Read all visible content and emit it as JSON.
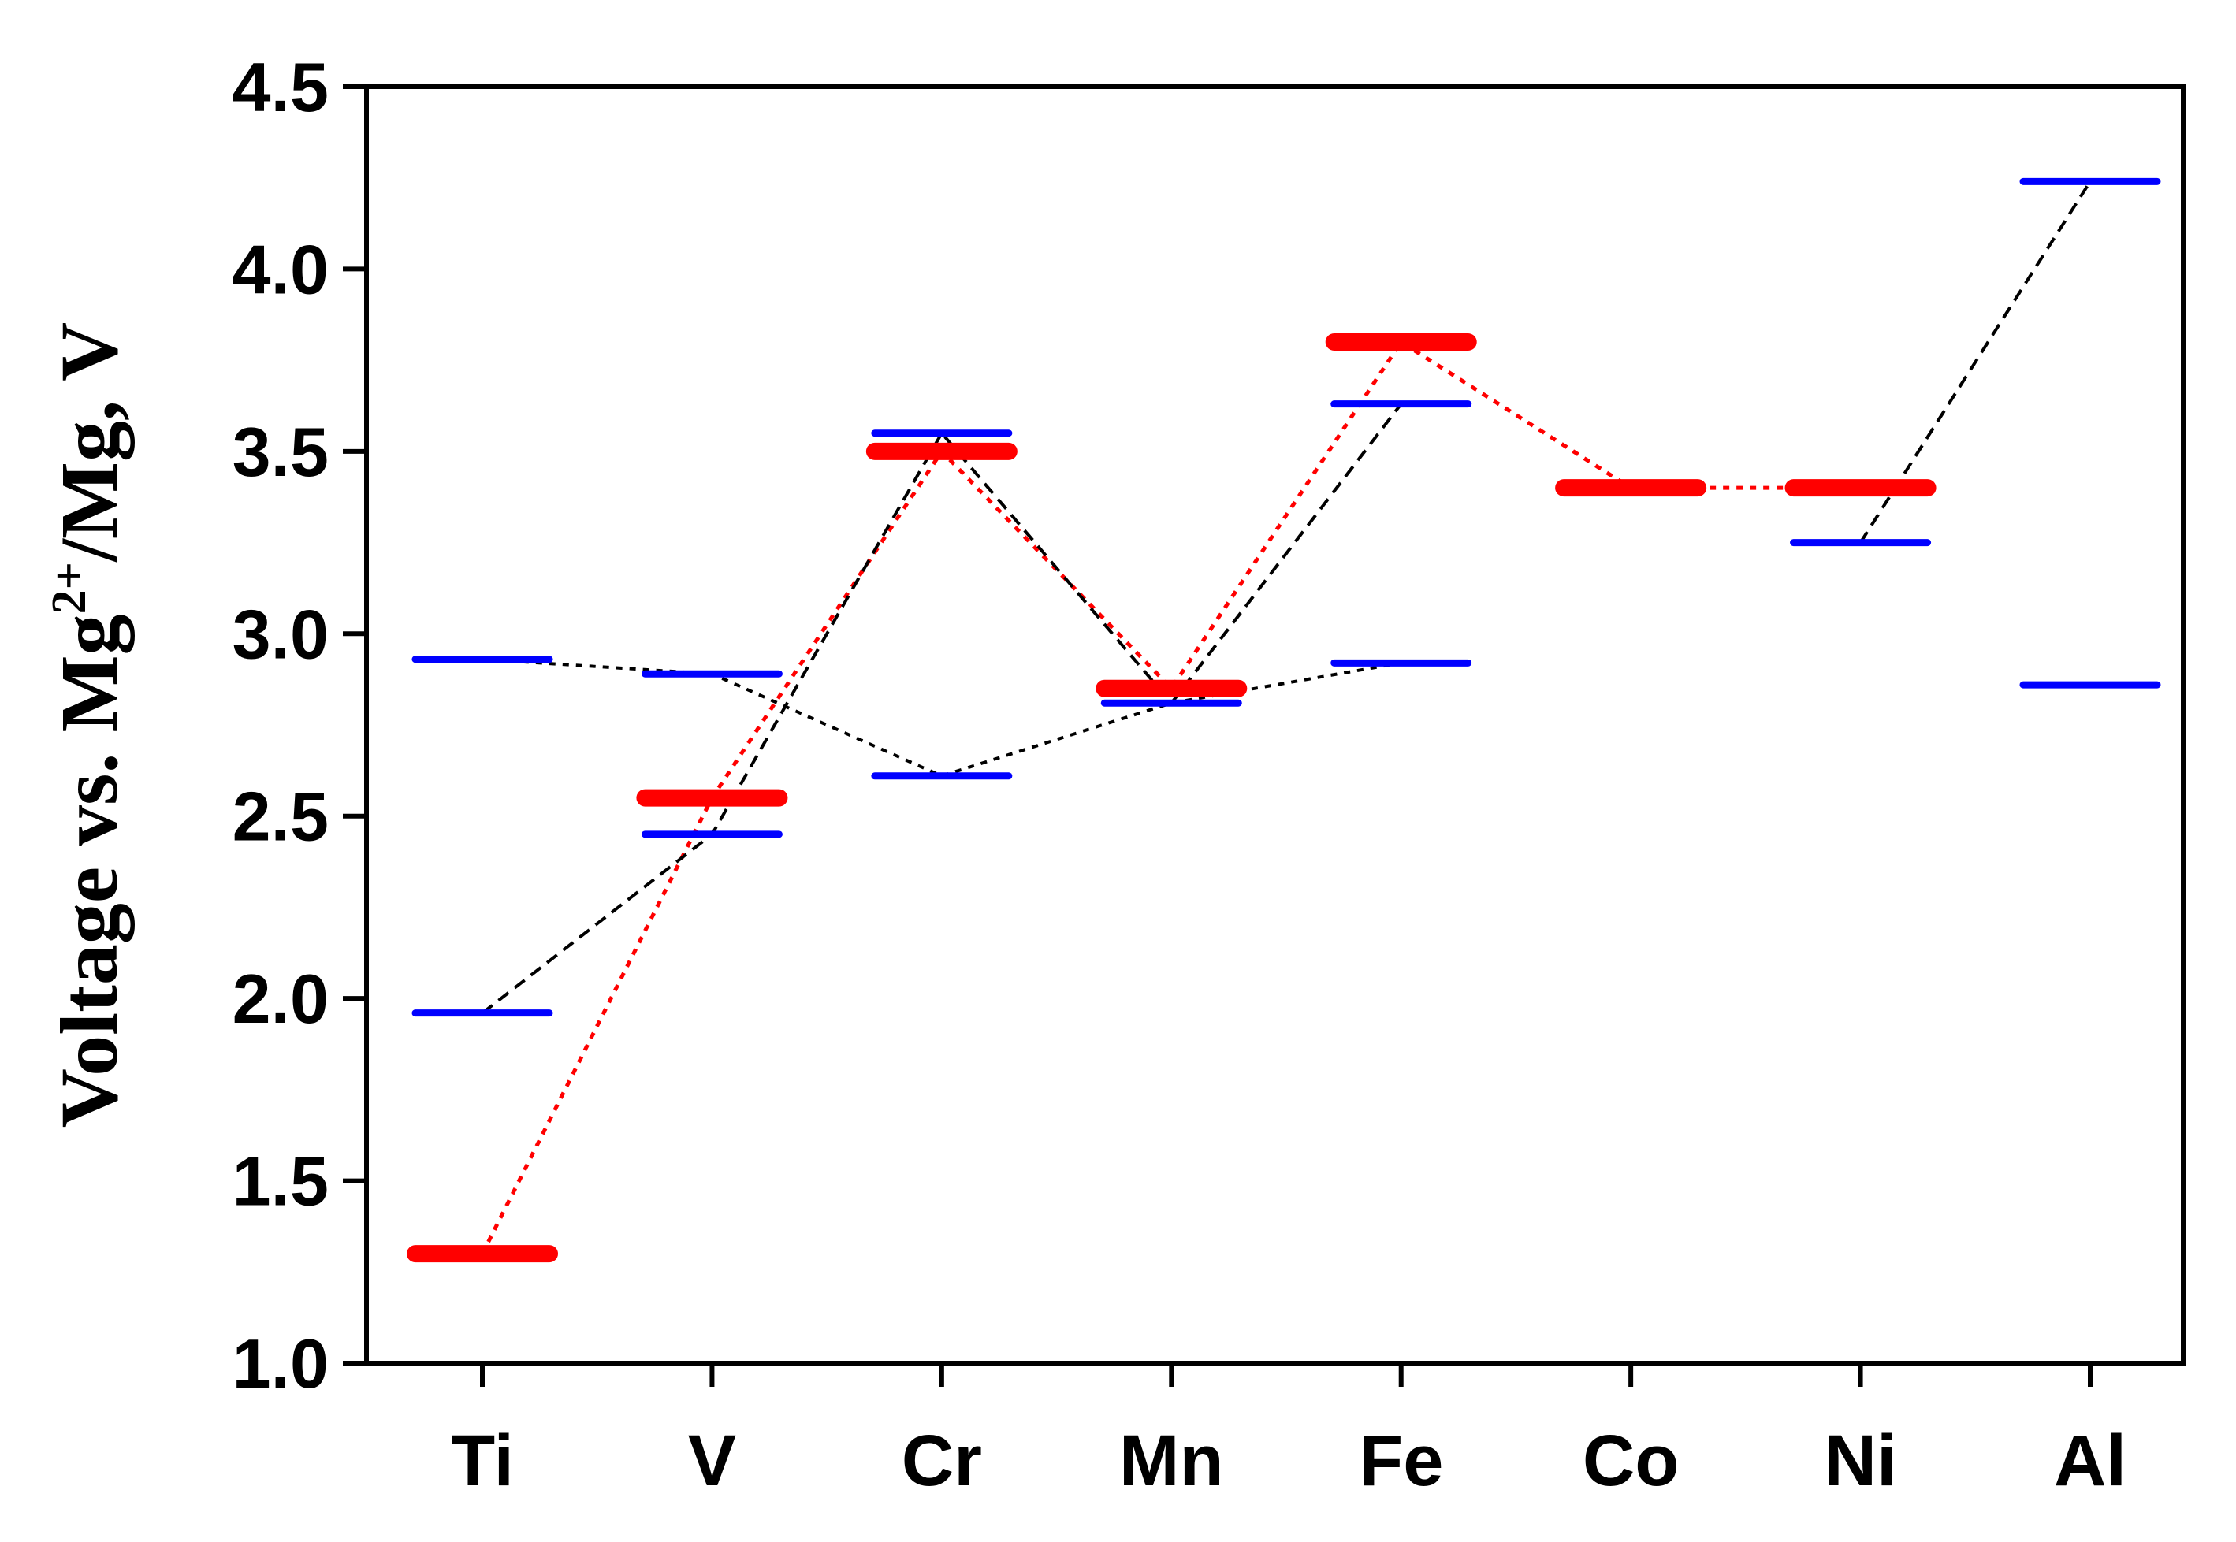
{
  "chart_data": {
    "type": "scatter",
    "categories": [
      "Ti",
      "V",
      "Cr",
      "Mn",
      "Fe",
      "Co",
      "Ni",
      "Al"
    ],
    "ylim": [
      1.0,
      4.5
    ],
    "yticks": [
      "1.0",
      "1.5",
      "2.0",
      "2.5",
      "3.0",
      "3.5",
      "4.0",
      "4.5"
    ],
    "ylabel": {
      "prefix": "Voltage vs. Mg",
      "superscript": "2+",
      "suffix": "/Mg, V"
    },
    "xlabel": "",
    "grid": false,
    "colors": {
      "series_red": "#ff0000",
      "series_blue": "#0000ff",
      "trend_line": "#000000",
      "axis": "#000000"
    },
    "series": [
      {
        "style": "thick-red-dash",
        "color": "#ff0000",
        "values": [
          1.3,
          2.55,
          3.5,
          2.85,
          3.8,
          3.4,
          3.4,
          null
        ]
      },
      {
        "style": "blue-dash-lower",
        "color": "#0000ff",
        "values": [
          1.96,
          2.45,
          2.61,
          2.81,
          3.63,
          null,
          3.25,
          4.24
        ]
      },
      {
        "style": "blue-dash-upper",
        "color": "#0000ff",
        "values": [
          2.93,
          2.89,
          3.55,
          null,
          2.92,
          null,
          null,
          2.86
        ]
      }
    ],
    "trend_lines": [
      {
        "color": "#ff0000",
        "style": "dotted",
        "points": [
          [
            0,
            1.3
          ],
          [
            1,
            2.55
          ],
          [
            2,
            3.5
          ],
          [
            3,
            2.85
          ],
          [
            4,
            3.8
          ],
          [
            5,
            3.4
          ],
          [
            6,
            3.4
          ]
        ]
      },
      {
        "color": "#000000",
        "style": "dashed",
        "points": [
          [
            0,
            1.96
          ],
          [
            1,
            2.45
          ],
          [
            2,
            3.55
          ],
          [
            3,
            2.81
          ],
          [
            4,
            3.63
          ]
        ]
      },
      {
        "color": "#000000",
        "style": "dashed",
        "points": [
          [
            6,
            3.25
          ],
          [
            7,
            4.24
          ]
        ]
      },
      {
        "color": "#000000",
        "style": "dotted",
        "points": [
          [
            0,
            2.93
          ],
          [
            1,
            2.89
          ],
          [
            2,
            2.61
          ],
          [
            3,
            2.81
          ],
          [
            4,
            2.92
          ]
        ]
      }
    ]
  }
}
